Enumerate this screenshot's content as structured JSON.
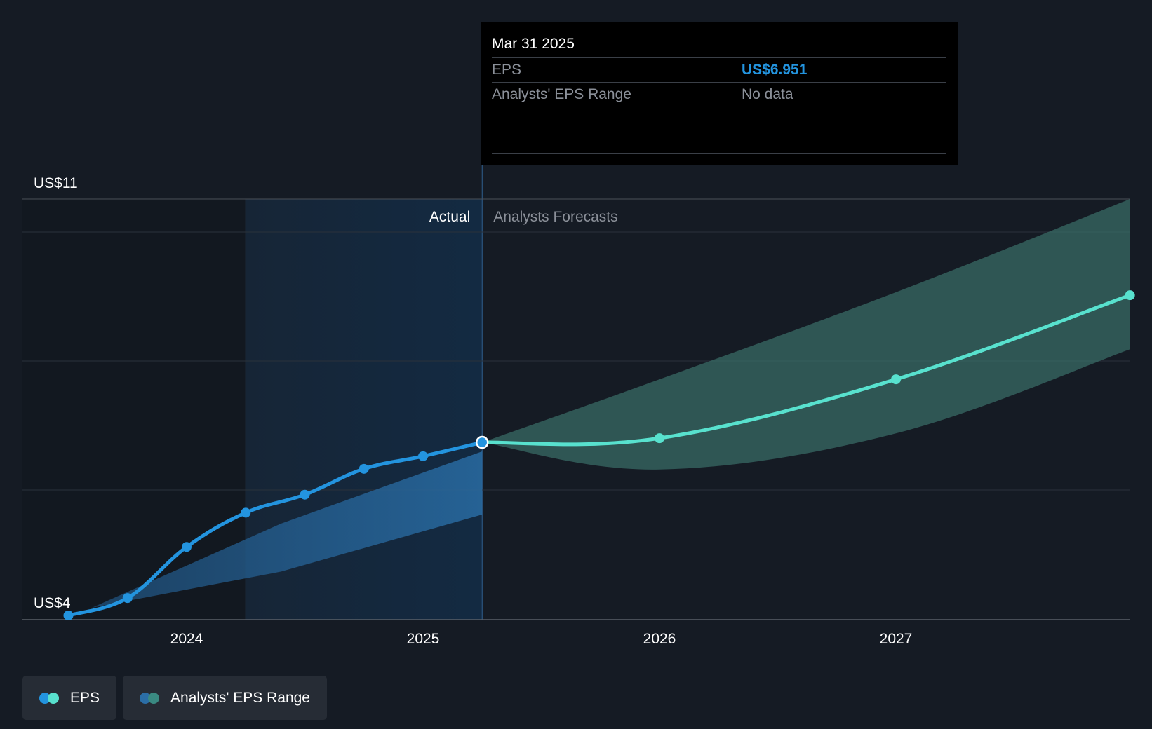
{
  "chart_data": {
    "type": "line",
    "y_axis": {
      "top_label": "US$11",
      "bottom_label": "US$4",
      "ylim": [
        4,
        11
      ]
    },
    "x_axis": {
      "tick_labels": [
        "2024",
        "2025",
        "2026",
        "2027"
      ],
      "ticks": [
        2024,
        2025,
        2026,
        2027
      ],
      "xlim": [
        2023.3,
        2027.99
      ]
    },
    "divider_x": 2025.25,
    "highlight_start_x": 2024.25,
    "regions": {
      "actual": "Actual",
      "forecast": "Analysts Forecasts"
    },
    "series": [
      {
        "name": "EPS",
        "kind": "actual",
        "color": "#2394df",
        "points": [
          {
            "x": 2023.5,
            "y": 4.07
          },
          {
            "x": 2023.75,
            "y": 4.36
          },
          {
            "x": 2024.0,
            "y": 5.21
          },
          {
            "x": 2024.25,
            "y": 5.78
          },
          {
            "x": 2024.5,
            "y": 6.08
          },
          {
            "x": 2024.75,
            "y": 6.51
          },
          {
            "x": 2025.0,
            "y": 6.72
          },
          {
            "x": 2025.25,
            "y": 6.951
          }
        ]
      },
      {
        "name": "EPS",
        "kind": "forecast",
        "color": "#58e1ce",
        "points": [
          {
            "x": 2025.25,
            "y": 6.951
          },
          {
            "x": 2026.0,
            "y": 7.02
          },
          {
            "x": 2027.0,
            "y": 8.0
          },
          {
            "x": 2027.99,
            "y": 9.4
          }
        ]
      }
    ],
    "ranges": [
      {
        "name": "Analysts' EPS Range",
        "kind": "actual",
        "color": "#2b6ea6",
        "upper": [
          {
            "x": 2023.6,
            "y": 4.2
          },
          {
            "x": 2024.4,
            "y": 5.6
          },
          {
            "x": 2025.25,
            "y": 6.8
          }
        ],
        "lower": [
          {
            "x": 2023.6,
            "y": 4.2
          },
          {
            "x": 2024.4,
            "y": 4.8
          },
          {
            "x": 2025.25,
            "y": 5.75
          }
        ]
      },
      {
        "name": "Analysts' EPS Range",
        "kind": "forecast",
        "color": "#3a6f6a",
        "upper": [
          {
            "x": 2025.25,
            "y": 6.951
          },
          {
            "x": 2026.0,
            "y": 8.0
          },
          {
            "x": 2027.0,
            "y": 9.45
          },
          {
            "x": 2027.99,
            "y": 11.0
          }
        ],
        "lower": [
          {
            "x": 2025.25,
            "y": 6.951
          },
          {
            "x": 2026.0,
            "y": 6.5
          },
          {
            "x": 2027.0,
            "y": 7.1
          },
          {
            "x": 2027.99,
            "y": 8.5
          }
        ]
      }
    ],
    "grid": true
  },
  "tooltip": {
    "date": "Mar 31 2025",
    "eps_label": "EPS",
    "eps_value": "US$6.951",
    "range_label": "Analysts' EPS Range",
    "range_value": "No data"
  },
  "legend": {
    "eps_label": "EPS",
    "range_label": "Analysts' EPS Range"
  },
  "colors": {
    "background": "#151b24",
    "eps_actual": "#2394df",
    "eps_forecast": "#58e1ce",
    "range_actual": "#2b6ea6",
    "range_forecast": "#3a6f6a"
  }
}
